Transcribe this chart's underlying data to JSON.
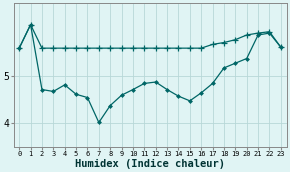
{
  "x": [
    0,
    1,
    2,
    3,
    4,
    5,
    6,
    7,
    8,
    9,
    10,
    11,
    12,
    13,
    14,
    15,
    16,
    17,
    18,
    19,
    20,
    21,
    22,
    23
  ],
  "line1_y": [
    5.6,
    6.1,
    5.6,
    5.6,
    5.6,
    5.6,
    5.6,
    5.6,
    5.6,
    5.6,
    5.6,
    5.6,
    5.6,
    5.6,
    5.6,
    5.6,
    5.6,
    5.68,
    5.72,
    5.78,
    5.88,
    5.92,
    5.95,
    5.62
  ],
  "line2_y": [
    5.6,
    6.1,
    4.72,
    4.68,
    4.82,
    4.62,
    4.55,
    4.02,
    4.38,
    4.6,
    4.72,
    4.85,
    4.88,
    4.72,
    4.58,
    4.48,
    4.65,
    4.85,
    5.18,
    5.28,
    5.38,
    5.88,
    5.92,
    5.62
  ],
  "line_color": "#006666",
  "bg_color": "#e0f4f4",
  "grid_color": "#b8d8d8",
  "xlabel": "Humidex (Indice chaleur)",
  "ylabel_ticks": [
    4,
    5
  ],
  "ylim": [
    3.55,
    6.55
  ],
  "xlim": [
    -0.5,
    23.5
  ],
  "xlabel_fontsize": 7.5,
  "tick_fontsize": 7,
  "marker1": "+",
  "marker2": "D",
  "marker1_size": 5,
  "marker2_size": 2.5
}
